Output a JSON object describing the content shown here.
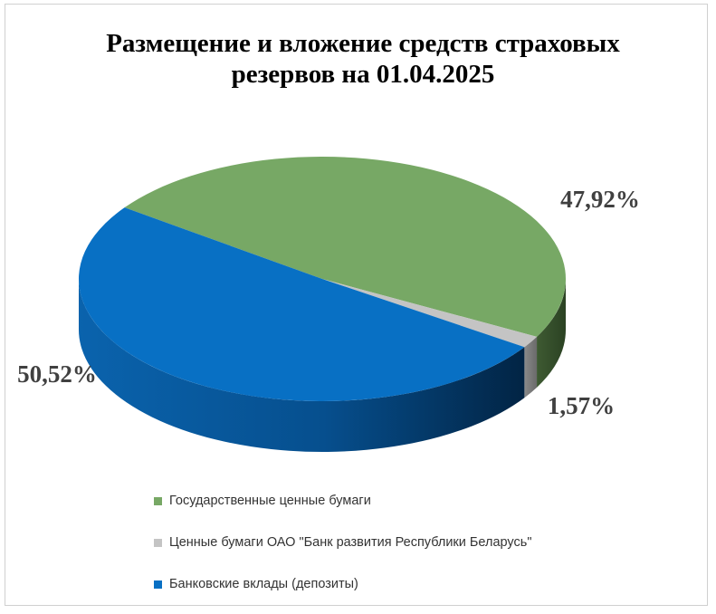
{
  "chart_data": {
    "type": "pie",
    "title": "Размещение и вложение средств страховых резервов на 01.04.2025",
    "title_lines": [
      "Размещение и вложение средств страховых",
      "резервов на 01.04.2025"
    ],
    "slices": [
      {
        "name": "Государственные ценные бумаги",
        "value": 47.92,
        "label": "47,92%",
        "color": "#77a865"
      },
      {
        "name": "Ценные бумаги ОАО \"Банк развития Республики Беларусь\"",
        "value": 1.57,
        "label": "1,57%",
        "color": "#c4c4c4"
      },
      {
        "name": "Банковские вклады (депозиты)",
        "value": 50.52,
        "label": "50,52%",
        "color": "#0870c4"
      }
    ],
    "style": "3d",
    "legend_position": "bottom"
  }
}
